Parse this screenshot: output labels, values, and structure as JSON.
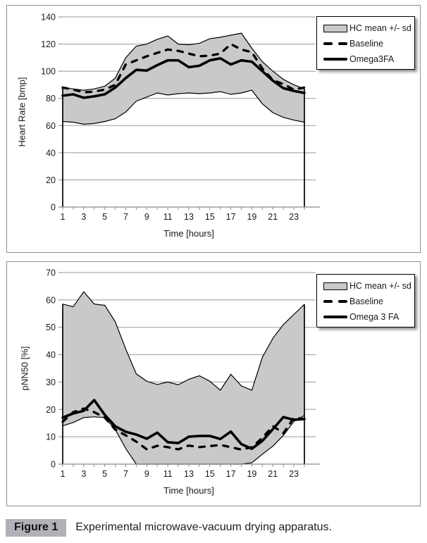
{
  "caption": {
    "label": "Figure 1",
    "text": "Experimental microwave-vacuum drying apparatus."
  },
  "colors": {
    "band_fill": "#c9c9c9",
    "band_outline": "#000000",
    "gridline": "#999999",
    "axis": "#8c8c8c",
    "series_line": "#000000",
    "panel_border": "#8f8f8f",
    "figure_label_bg": "#b1b1b8"
  },
  "chart_data": [
    {
      "id": "heart-rate",
      "type": "line",
      "xlabel": "Time [hours]",
      "ylabel": "Heart Rate [bmp]",
      "x": [
        1,
        2,
        3,
        4,
        5,
        6,
        7,
        8,
        9,
        10,
        11,
        12,
        13,
        14,
        15,
        16,
        17,
        18,
        19,
        20,
        21,
        22,
        23,
        24
      ],
      "x_tick_labels": [
        "1",
        "3",
        "5",
        "7",
        "9",
        "11",
        "13",
        "15",
        "17",
        "19",
        "21",
        "23"
      ],
      "ylim": [
        0,
        140
      ],
      "ytick_step": 20,
      "grid": "horizontal",
      "legend_position": "top-right",
      "band": {
        "label": "HC mean +/- sd",
        "upper": [
          88,
          87,
          86,
          87,
          89,
          95,
          110,
          118.5,
          120,
          123.5,
          126,
          120,
          119.5,
          120.5,
          124,
          125,
          126.5,
          128,
          117,
          107,
          100,
          94,
          90,
          87
        ],
        "lower": [
          63,
          62.5,
          61,
          61.5,
          63,
          65,
          70,
          78,
          81,
          84,
          82.5,
          83.5,
          84,
          83.5,
          84,
          85,
          83,
          84,
          86,
          76,
          69.5,
          66,
          64,
          62.5
        ]
      },
      "series": [
        {
          "name": "Baseline",
          "style": "dashed",
          "values": [
            88,
            86.5,
            84.5,
            85,
            86.5,
            90,
            105,
            108,
            111,
            113.5,
            116,
            115,
            113,
            111,
            111.5,
            113,
            120,
            116,
            114,
            102,
            93.5,
            90.5,
            86.5,
            88
          ]
        },
        {
          "name": "Omega3FA",
          "style": "solid",
          "values": [
            82,
            83,
            80.5,
            81.5,
            83,
            88,
            95,
            101,
            100.5,
            104.5,
            108,
            108,
            103,
            104,
            108,
            109.5,
            105,
            108,
            107,
            100,
            93,
            87.5,
            85.5,
            84
          ]
        }
      ],
      "legend_items": [
        {
          "label": "HC mean +/- sd",
          "swatch": "band"
        },
        {
          "label": "Baseline",
          "swatch": "dashed"
        },
        {
          "label": "Omega3FA",
          "swatch": "solid"
        }
      ]
    },
    {
      "id": "pnn50",
      "type": "line",
      "xlabel": "Time [hours]",
      "ylabel": "pNN50 [%]",
      "x": [
        1,
        2,
        3,
        4,
        5,
        6,
        7,
        8,
        9,
        10,
        11,
        12,
        13,
        14,
        15,
        16,
        17,
        18,
        19,
        20,
        21,
        22,
        23,
        24
      ],
      "x_tick_labels": [
        "1",
        "3",
        "5",
        "7",
        "9",
        "11",
        "13",
        "15",
        "17",
        "19",
        "21",
        "23"
      ],
      "ylim": [
        0,
        70
      ],
      "ytick_step": 10,
      "grid": "horizontal",
      "legend_position": "top-right",
      "band": {
        "label": "HC mean +/- sd",
        "upper": [
          58.5,
          57.5,
          63,
          58.5,
          58,
          52,
          42,
          33,
          30.3,
          29.1,
          30,
          29,
          31,
          32.3,
          30.3,
          27,
          32.8,
          28.6,
          27,
          39,
          46,
          51,
          54.7,
          58.4
        ],
        "lower": [
          14,
          15.2,
          17,
          17.3,
          17,
          12.6,
          5.7,
          0,
          0,
          0,
          0,
          0,
          0,
          0,
          0,
          0,
          0,
          0,
          0.5,
          3.6,
          6.6,
          10.5,
          15.6,
          17.8
        ]
      },
      "series": [
        {
          "name": "Baseline",
          "style": "dashed",
          "values": [
            15.5,
            19,
            20.3,
            19,
            17,
            12.6,
            10.5,
            8.2,
            5.4,
            6.7,
            6.2,
            5.4,
            6.8,
            6.2,
            6.6,
            7,
            6.2,
            5.3,
            6.2,
            9.6,
            13.9,
            11.3,
            16.9,
            16.5
          ]
        },
        {
          "name": "Omega 3 FA",
          "style": "solid",
          "values": [
            17,
            18.5,
            19.5,
            23.4,
            18,
            13.8,
            11.8,
            10.8,
            9.3,
            11.5,
            8,
            7.7,
            10,
            10.3,
            10.3,
            9.2,
            11.9,
            7.3,
            5.6,
            8.5,
            12.8,
            17.2,
            16.2,
            16.5
          ]
        }
      ],
      "legend_items": [
        {
          "label": "HC mean +/- sd",
          "swatch": "band"
        },
        {
          "label": "Baseline",
          "swatch": "dashed"
        },
        {
          "label": "Omega 3 FA",
          "swatch": "solid"
        }
      ]
    }
  ]
}
